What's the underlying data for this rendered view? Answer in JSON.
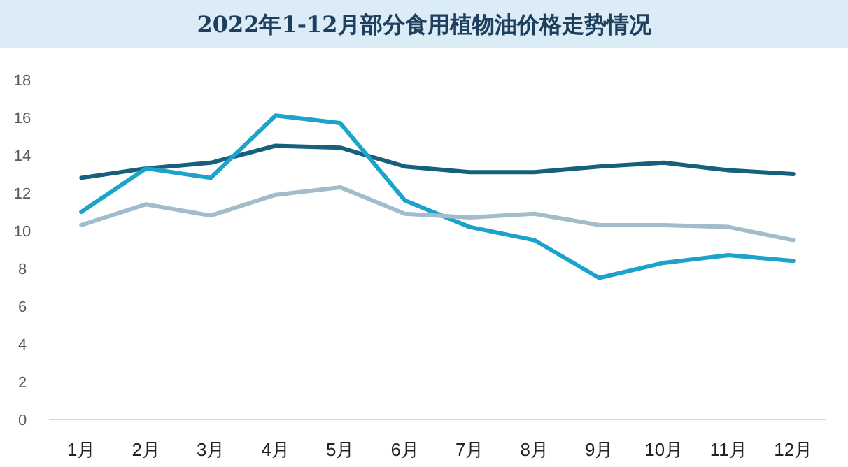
{
  "chart_data": {
    "type": "line",
    "title": "2022年1-12月部分食用植物油价格走势情况",
    "categories": [
      "1月",
      "2月",
      "3月",
      "4月",
      "5月",
      "6月",
      "7月",
      "8月",
      "9月",
      "10月",
      "11月",
      "12月"
    ],
    "series": [
      {
        "color": "#17607d",
        "values": [
          12.8,
          13.3,
          13.6,
          14.5,
          14.4,
          13.4,
          13.1,
          13.1,
          13.4,
          13.6,
          13.2,
          13.0
        ]
      },
      {
        "color": "#1ba3cc",
        "values": [
          11.0,
          13.3,
          12.8,
          16.1,
          15.7,
          11.6,
          10.2,
          9.5,
          7.5,
          8.3,
          8.7,
          8.4
        ]
      },
      {
        "color": "#a2bccb",
        "values": [
          10.3,
          11.4,
          10.8,
          11.9,
          12.3,
          10.9,
          10.7,
          10.9,
          10.3,
          10.3,
          10.2,
          9.5
        ]
      }
    ],
    "ylim": [
      0,
      18
    ],
    "yticks": [
      0,
      2,
      4,
      6,
      8,
      10,
      12,
      14,
      16,
      18
    ],
    "grid": false,
    "marker": "none",
    "line_style": "solid"
  }
}
